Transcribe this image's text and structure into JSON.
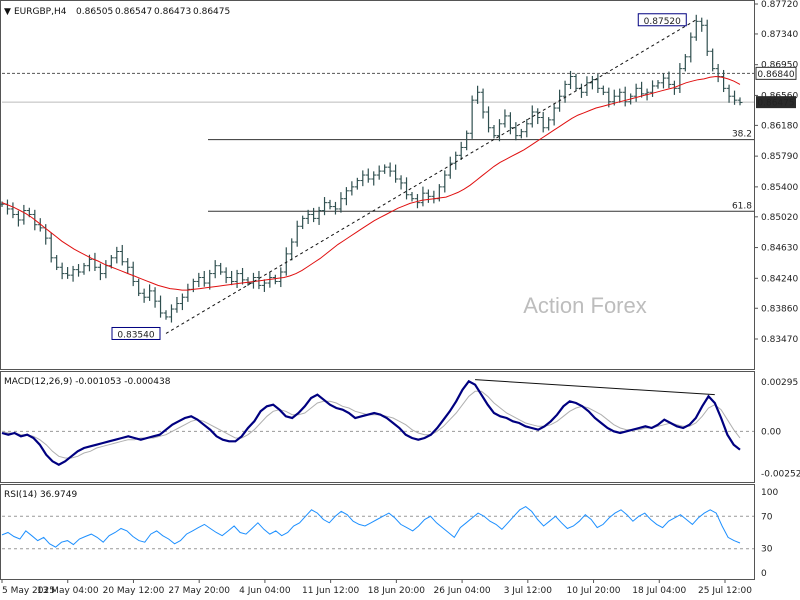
{
  "chart_data": [
    {
      "type": "line",
      "panel": "price",
      "title": "EURGBP,H4",
      "ohlc_header": [
        "0.86505",
        "0.86547",
        "0.86473",
        "0.86475"
      ],
      "watermark": "Action Forex",
      "ylim": [
        0.8347,
        0.8772
      ],
      "y_ticks": [
        "0.87720",
        "0.87340",
        "0.86950",
        "0.86560",
        "0.86180",
        "0.85790",
        "0.85400",
        "0.85020",
        "0.84630",
        "0.84240",
        "0.83860",
        "0.83470"
      ],
      "price_tag_level": 0.8684,
      "price_tag": "0.86840",
      "current_price": 0.86475,
      "current_price_tag": "0.86475",
      "low_marker": {
        "value": 0.8354,
        "label": "0.83540"
      },
      "high_marker": {
        "value": 0.8752,
        "label": "0.87520"
      },
      "fib_levels": [
        {
          "label": "38.2",
          "value": 0.86
        },
        {
          "label": "61.8",
          "value": 0.8509
        }
      ],
      "close_series": [
        0.8518,
        0.8512,
        0.8505,
        0.8498,
        0.851,
        0.8505,
        0.8492,
        0.8488,
        0.8475,
        0.845,
        0.8438,
        0.843,
        0.8428,
        0.8435,
        0.8432,
        0.844,
        0.8448,
        0.8438,
        0.843,
        0.844,
        0.845,
        0.8458,
        0.8445,
        0.8438,
        0.842,
        0.8405,
        0.84,
        0.8408,
        0.8395,
        0.838,
        0.8375,
        0.8385,
        0.8392,
        0.84,
        0.841,
        0.842,
        0.8425,
        0.8418,
        0.843,
        0.844,
        0.8432,
        0.8425,
        0.842,
        0.843,
        0.8422,
        0.8418,
        0.8425,
        0.8415,
        0.8418,
        0.8425,
        0.842,
        0.8432,
        0.8455,
        0.847,
        0.849,
        0.85,
        0.8505,
        0.85,
        0.851,
        0.852,
        0.8515,
        0.8512,
        0.8525,
        0.8535,
        0.854,
        0.8548,
        0.8555,
        0.855,
        0.8555,
        0.856,
        0.8565,
        0.856,
        0.855,
        0.8545,
        0.853,
        0.8525,
        0.852,
        0.8532,
        0.8528,
        0.8525,
        0.854,
        0.8555,
        0.857,
        0.858,
        0.859,
        0.8608,
        0.865,
        0.866,
        0.8635,
        0.8615,
        0.8605,
        0.862,
        0.863,
        0.8615,
        0.8605,
        0.861,
        0.862,
        0.8635,
        0.8628,
        0.8615,
        0.8625,
        0.864,
        0.8655,
        0.867,
        0.868,
        0.8665,
        0.866,
        0.8672,
        0.8676,
        0.8665,
        0.866,
        0.8648,
        0.8655,
        0.866,
        0.8648,
        0.8655,
        0.8665,
        0.8658,
        0.866,
        0.8668,
        0.8672,
        0.8678,
        0.867,
        0.8665,
        0.869,
        0.8705,
        0.873,
        0.875,
        0.8745,
        0.8712,
        0.869,
        0.868,
        0.8665,
        0.8655,
        0.865,
        0.8647
      ],
      "moving_average": [
        0.852,
        0.8517,
        0.8514,
        0.851,
        0.8506,
        0.8501,
        0.8495,
        0.8489,
        0.8483,
        0.8477,
        0.8471,
        0.8466,
        0.8461,
        0.8457,
        0.8453,
        0.8449,
        0.8446,
        0.8442,
        0.8439,
        0.8436,
        0.8433,
        0.843,
        0.8427,
        0.8424,
        0.8421,
        0.8418,
        0.8415,
        0.8413,
        0.8411,
        0.841,
        0.8409,
        0.8409,
        0.841,
        0.8411,
        0.8412,
        0.8413,
        0.8414,
        0.8415,
        0.8416,
        0.8417,
        0.8418,
        0.8419,
        0.842,
        0.8421,
        0.8422,
        0.8423,
        0.8424,
        0.8425,
        0.8427,
        0.843,
        0.8434,
        0.8439,
        0.8444,
        0.8449,
        0.8455,
        0.8461,
        0.8467,
        0.8472,
        0.8477,
        0.8482,
        0.8487,
        0.8492,
        0.8497,
        0.8501,
        0.8505,
        0.8509,
        0.8513,
        0.8516,
        0.8519,
        0.8521,
        0.8523,
        0.8524,
        0.8525,
        0.8526,
        0.8527,
        0.853,
        0.8533,
        0.8537,
        0.8542,
        0.8548,
        0.8554,
        0.856,
        0.8566,
        0.8571,
        0.8575,
        0.8579,
        0.8583,
        0.8587,
        0.8592,
        0.8597,
        0.8602,
        0.8607,
        0.8612,
        0.8617,
        0.8622,
        0.8627,
        0.8631,
        0.8634,
        0.8637,
        0.864,
        0.8642,
        0.8644,
        0.8646,
        0.8648,
        0.865,
        0.8652,
        0.8654,
        0.8656,
        0.8658,
        0.866,
        0.8662,
        0.8664,
        0.8666,
        0.8669,
        0.8672,
        0.8674,
        0.8676,
        0.8677,
        0.8679,
        0.868,
        0.8679,
        0.8677,
        0.8674,
        0.867
      ]
    },
    {
      "type": "line",
      "panel": "macd",
      "title": "MACD(12,26,9) -0.001053 -0.000438",
      "ylim": [
        -0.0028,
        0.0032
      ],
      "y_ticks": [
        "0.00295",
        "0.00",
        "-0.002529"
      ],
      "main_series": [
        -0.0001,
        -0.0002,
        -0.0001,
        -0.0003,
        -0.0002,
        -0.0004,
        -0.0008,
        -0.0014,
        -0.0018,
        -0.002,
        -0.0018,
        -0.0015,
        -0.0012,
        -0.001,
        -0.0009,
        -0.0008,
        -0.0007,
        -0.0006,
        -0.0005,
        -0.0004,
        -0.0003,
        -0.0004,
        -0.0005,
        -0.0004,
        -0.0003,
        -0.0002,
        0.0001,
        0.0004,
        0.0006,
        0.0008,
        0.0009,
        0.0007,
        0.0004,
        0.0001,
        -0.0003,
        -0.0005,
        -0.0006,
        -0.0006,
        -0.0003,
        0.0002,
        0.0006,
        0.0012,
        0.0015,
        0.0016,
        0.0013,
        0.0009,
        0.0008,
        0.0011,
        0.0015,
        0.002,
        0.0022,
        0.0019,
        0.0016,
        0.0014,
        0.0013,
        0.0011,
        0.0008,
        0.0009,
        0.001,
        0.0011,
        0.001,
        0.0008,
        0.0005,
        0.0002,
        -0.0002,
        -0.0004,
        -0.0005,
        -0.0004,
        -0.0002,
        0.0002,
        0.0007,
        0.0012,
        0.0018,
        0.0025,
        0.003,
        0.0028,
        0.0022,
        0.0016,
        0.0011,
        0.0009,
        0.0008,
        0.0006,
        0.0005,
        0.0003,
        0.0002,
        0.0001,
        0.0003,
        0.0006,
        0.001,
        0.0015,
        0.0018,
        0.0017,
        0.0015,
        0.0012,
        0.0008,
        0.0005,
        0.0002,
        0.0,
        -0.0001,
        0.0,
        0.0001,
        0.0002,
        0.0003,
        0.0002,
        0.0004,
        0.0007,
        0.0005,
        0.0003,
        0.0002,
        0.0004,
        0.0008,
        0.0015,
        0.0021,
        0.0017,
        0.0008,
        -0.0002,
        -0.0008,
        -0.0011
      ],
      "signal_series": [
        0.0,
        -0.0001,
        -0.0001,
        -0.0002,
        -0.0002,
        -0.0003,
        -0.0005,
        -0.0008,
        -0.0012,
        -0.0015,
        -0.0016,
        -0.0016,
        -0.0015,
        -0.0013,
        -0.0012,
        -0.001,
        -0.0009,
        -0.0008,
        -0.0007,
        -0.0006,
        -0.0005,
        -0.0005,
        -0.0004,
        -0.0004,
        -0.0004,
        -0.0003,
        -0.0002,
        0.0,
        0.0002,
        0.0004,
        0.0006,
        0.0007,
        0.0006,
        0.0004,
        0.0002,
        0.0,
        -0.0002,
        -0.0004,
        -0.0004,
        -0.0002,
        0.0001,
        0.0005,
        0.0009,
        0.0012,
        0.0013,
        0.0012,
        0.001,
        0.001,
        0.0011,
        0.0014,
        0.0017,
        0.0018,
        0.0018,
        0.0017,
        0.0015,
        0.0014,
        0.0012,
        0.0011,
        0.001,
        0.001,
        0.001,
        0.0009,
        0.0008,
        0.0006,
        0.0004,
        0.0001,
        -0.0001,
        -0.0002,
        -0.0002,
        0.0,
        0.0003,
        0.0007,
        0.0011,
        0.0016,
        0.0021,
        0.0024,
        0.0024,
        0.0021,
        0.0017,
        0.0014,
        0.0011,
        0.0009,
        0.0007,
        0.0005,
        0.0004,
        0.0003,
        0.0003,
        0.0004,
        0.0006,
        0.0009,
        0.0012,
        0.0014,
        0.0015,
        0.0014,
        0.0012,
        0.001,
        0.0007,
        0.0004,
        0.0002,
        0.0001,
        0.0001,
        0.0001,
        0.0002,
        0.0002,
        0.0003,
        0.0004,
        0.0005,
        0.0004,
        0.0003,
        0.0003,
        0.0005,
        0.0009,
        0.0014,
        0.0016,
        0.0013,
        0.0007,
        0.0001,
        -0.0004
      ],
      "divergence_line": [
        {
          "i": 75,
          "value": 0.0031
        },
        {
          "i": 113,
          "value": 0.0022
        }
      ]
    },
    {
      "type": "line",
      "panel": "rsi",
      "title": "RSI(14) 36.9749",
      "ylim": [
        0,
        100
      ],
      "y_ticks": [
        "100",
        "70",
        "30",
        "0"
      ],
      "levels": [
        70,
        30
      ],
      "series": [
        47,
        50,
        45,
        42,
        52,
        46,
        40,
        44,
        36,
        32,
        38,
        40,
        35,
        42,
        45,
        48,
        44,
        38,
        46,
        50,
        55,
        52,
        45,
        40,
        38,
        48,
        52,
        46,
        42,
        36,
        40,
        48,
        52,
        56,
        60,
        55,
        50,
        46,
        52,
        58,
        50,
        48,
        55,
        62,
        54,
        48,
        52,
        46,
        50,
        58,
        62,
        70,
        78,
        74,
        66,
        62,
        70,
        76,
        72,
        64,
        60,
        58,
        62,
        66,
        70,
        74,
        68,
        60,
        56,
        52,
        58,
        66,
        70,
        62,
        56,
        50,
        44,
        56,
        62,
        68,
        74,
        70,
        64,
        60,
        54,
        62,
        70,
        78,
        82,
        76,
        66,
        58,
        64,
        70,
        62,
        55,
        58,
        64,
        72,
        66,
        56,
        60,
        68,
        74,
        78,
        72,
        64,
        70,
        74,
        66,
        60,
        56,
        64,
        68,
        72,
        66,
        60,
        68,
        74,
        78,
        74,
        58,
        44,
        40,
        37
      ]
    }
  ],
  "x_axis_labels": [
    "5 May 2025",
    "13 May 04:00",
    "20 May 12:00",
    "27 May 20:00",
    "4 Jun 04:00",
    "11 Jun 12:00",
    "18 Jun 20:00",
    "26 Jun 04:00",
    "3 Jul 12:00",
    "10 Jul 20:00",
    "18 Jul 04:00",
    "25 Jul 12:00"
  ],
  "colors": {
    "bars": "#2f4f4f",
    "moving_average": "#e01010",
    "macd_main": "#000080",
    "macd_signal": "#b0b0b0",
    "rsi": "#1e90ff",
    "price_tag_bg": "#ffffff",
    "current_tag_bg": "#2a2a2a",
    "grid_dotted": "#999999"
  }
}
